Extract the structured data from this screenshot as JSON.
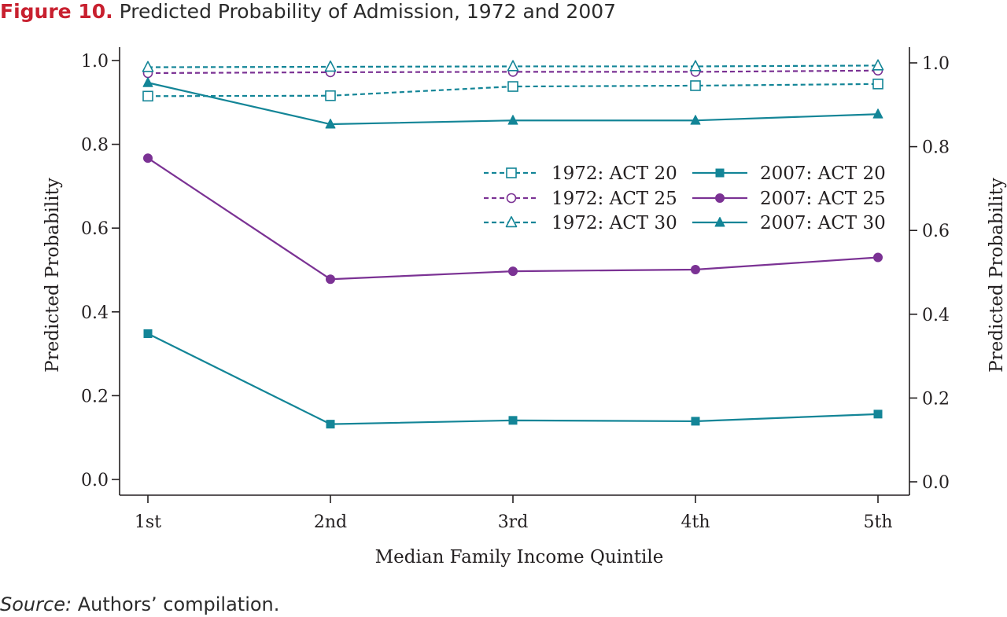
{
  "figure": {
    "label": "Figure 10.",
    "title": "Predicted Probability of Admission, 1972 and 2007"
  },
  "source": {
    "label": "Source:",
    "text": "Authors’ compilation."
  },
  "chart_data": {
    "type": "line",
    "categories": [
      "1st",
      "2nd",
      "3rd",
      "4th",
      "5th"
    ],
    "xlabel": "Median Family Income Quintile",
    "ylabel": "Predicted Probability",
    "ylabel_right": "Predicted Probability",
    "ylim": [
      0.0,
      1.0
    ],
    "yticks": [
      "0.0",
      "0.2",
      "0.4",
      "0.6",
      "0.8",
      "1.0"
    ],
    "grid": false,
    "legend_placement": "upper-right",
    "series": [
      {
        "name": "1972: ACT 20",
        "values": [
          0.915,
          0.916,
          0.938,
          0.94,
          0.944
        ],
        "color": "#138597",
        "dashed": true,
        "marker": "square-open"
      },
      {
        "name": "1972: ACT 25",
        "values": [
          0.97,
          0.972,
          0.973,
          0.973,
          0.976
        ],
        "color": "#7b3294",
        "dashed": true,
        "marker": "circle-open"
      },
      {
        "name": "1972: ACT 30",
        "values": [
          0.984,
          0.985,
          0.986,
          0.986,
          0.988
        ],
        "color": "#138597",
        "dashed": true,
        "marker": "triangle-open"
      },
      {
        "name": "2007: ACT 20",
        "values": [
          0.348,
          0.132,
          0.141,
          0.139,
          0.156
        ],
        "color": "#138597",
        "dashed": false,
        "marker": "square-filled"
      },
      {
        "name": "2007: ACT 25",
        "values": [
          0.767,
          0.478,
          0.497,
          0.501,
          0.53
        ],
        "color": "#7b3294",
        "dashed": false,
        "marker": "circle-filled"
      },
      {
        "name": "2007: ACT 30",
        "values": [
          0.947,
          0.848,
          0.857,
          0.857,
          0.872
        ],
        "color": "#138597",
        "dashed": false,
        "marker": "triangle-filled"
      }
    ]
  }
}
